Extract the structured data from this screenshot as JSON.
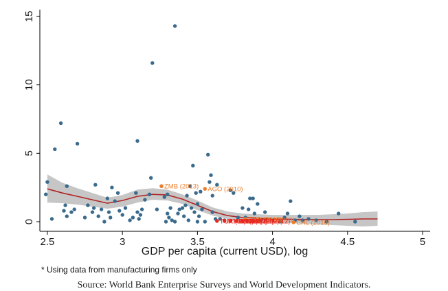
{
  "chart_data": {
    "type": "scatter",
    "xlabel": "GDP per capita (current USD), log",
    "ylabel": "",
    "xlim": [
      2.45,
      5.05
    ],
    "ylim": [
      -0.4,
      15.5
    ],
    "xticks": [
      2.5,
      3,
      3.5,
      4,
      4.5,
      5
    ],
    "xtick_labels": [
      "2.5",
      "3",
      "3.5",
      "4",
      "4.5",
      "5"
    ],
    "yticks": [
      0,
      5,
      10,
      15
    ],
    "ytick_labels": [
      "0",
      "5",
      "10",
      "15"
    ],
    "grid": false,
    "colors": {
      "points": "#3a6a8c",
      "fit_line": "#b22222",
      "confidence_band": "#b3b3b3",
      "highlight_orange": "#ee7d2b",
      "highlight_red": "#e8281e"
    },
    "series": [
      {
        "type": "scatter",
        "points": [
          [
            2.49,
            2.0
          ],
          [
            2.5,
            2.9
          ],
          [
            2.53,
            0.2
          ],
          [
            2.55,
            5.3
          ],
          [
            2.59,
            7.2
          ],
          [
            2.61,
            0.8
          ],
          [
            2.62,
            1.2
          ],
          [
            2.63,
            2.6
          ],
          [
            2.63,
            0.4
          ],
          [
            2.66,
            0.7
          ],
          [
            2.68,
            0.9
          ],
          [
            2.7,
            5.7
          ],
          [
            2.75,
            0.3
          ],
          [
            2.77,
            1.2
          ],
          [
            2.8,
            0.7
          ],
          [
            2.81,
            1.0
          ],
          [
            2.82,
            2.7
          ],
          [
            2.84,
            0.4
          ],
          [
            2.86,
            0.9
          ],
          [
            2.88,
            0.0
          ],
          [
            2.9,
            1.7
          ],
          [
            2.91,
            0.7
          ],
          [
            2.92,
            0.3
          ],
          [
            2.93,
            2.5
          ],
          [
            2.95,
            1.5
          ],
          [
            2.97,
            2.1
          ],
          [
            2.98,
            0.8
          ],
          [
            3.0,
            0.5
          ],
          [
            3.02,
            1.0
          ],
          [
            3.05,
            0.1
          ],
          [
            3.07,
            0.3
          ],
          [
            3.09,
            2.1
          ],
          [
            3.1,
            0.7
          ],
          [
            3.1,
            5.9
          ],
          [
            3.11,
            0.2
          ],
          [
            3.12,
            0.5
          ],
          [
            3.13,
            0.9
          ],
          [
            3.15,
            1.6
          ],
          [
            3.18,
            2.0
          ],
          [
            3.19,
            3.2
          ],
          [
            3.2,
            11.6
          ],
          [
            3.23,
            0.9
          ],
          [
            3.26,
            2.6
          ],
          [
            3.28,
            1.8
          ],
          [
            3.29,
            0.0
          ],
          [
            3.3,
            0.6
          ],
          [
            3.3,
            2.0
          ],
          [
            3.31,
            0.3
          ],
          [
            3.32,
            1.0
          ],
          [
            3.33,
            0.1
          ],
          [
            3.35,
            14.3
          ],
          [
            3.35,
            0.0
          ],
          [
            3.37,
            0.6
          ],
          [
            3.38,
            0.9
          ],
          [
            3.4,
            1.0
          ],
          [
            3.41,
            0.4
          ],
          [
            3.42,
            1.2
          ],
          [
            3.43,
            1.9
          ],
          [
            3.44,
            0.1
          ],
          [
            3.45,
            2.6
          ],
          [
            3.46,
            1.0
          ],
          [
            3.47,
            4.1
          ],
          [
            3.48,
            0.7
          ],
          [
            3.49,
            2.1
          ],
          [
            3.5,
            0.0
          ],
          [
            3.5,
            1.3
          ],
          [
            3.51,
            0.4
          ],
          [
            3.52,
            2.2
          ],
          [
            3.53,
            0.9
          ],
          [
            3.55,
            0.0
          ],
          [
            3.57,
            4.9
          ],
          [
            3.58,
            2.9
          ],
          [
            3.59,
            3.4
          ],
          [
            3.6,
            1.9
          ],
          [
            3.6,
            0.7
          ],
          [
            3.62,
            0.2
          ],
          [
            3.63,
            2.7
          ],
          [
            3.65,
            0.2
          ],
          [
            3.68,
            0.1
          ],
          [
            3.72,
            2.3
          ],
          [
            3.74,
            2.1
          ],
          [
            3.77,
            0.3
          ],
          [
            3.8,
            1.0
          ],
          [
            3.82,
            0.3
          ],
          [
            3.84,
            0.9
          ],
          [
            3.85,
            1.7
          ],
          [
            3.87,
            1.7
          ],
          [
            3.88,
            0.6
          ],
          [
            3.9,
            1.3
          ],
          [
            3.92,
            0.1
          ],
          [
            3.95,
            0.7
          ],
          [
            4.0,
            0.1
          ],
          [
            4.05,
            0.0
          ],
          [
            4.08,
            0.3
          ],
          [
            4.1,
            0.6
          ],
          [
            4.12,
            1.5
          ],
          [
            4.15,
            0.1
          ],
          [
            4.18,
            0.4
          ],
          [
            4.2,
            0.1
          ],
          [
            4.24,
            0.2
          ],
          [
            4.29,
            0.1
          ],
          [
            4.36,
            0.0
          ],
          [
            4.44,
            0.6
          ],
          [
            4.55,
            0.0
          ]
        ]
      },
      {
        "type": "line",
        "points": [
          [
            2.5,
            2.4
          ],
          [
            2.6,
            2.1
          ],
          [
            2.7,
            1.85
          ],
          [
            2.8,
            1.6
          ],
          [
            2.9,
            1.35
          ],
          [
            3.0,
            1.55
          ],
          [
            3.1,
            1.85
          ],
          [
            3.2,
            2.0
          ],
          [
            3.3,
            1.95
          ],
          [
            3.4,
            1.65
          ],
          [
            3.5,
            1.2
          ],
          [
            3.6,
            0.75
          ],
          [
            3.7,
            0.45
          ],
          [
            3.8,
            0.3
          ],
          [
            3.9,
            0.25
          ],
          [
            4.0,
            0.2
          ],
          [
            4.1,
            0.18
          ],
          [
            4.2,
            0.16
          ],
          [
            4.3,
            0.15
          ],
          [
            4.4,
            0.15
          ],
          [
            4.5,
            0.17
          ],
          [
            4.6,
            0.2
          ],
          [
            4.7,
            0.2
          ]
        ]
      },
      {
        "type": "band",
        "points": [
          [
            2.5,
            1.4,
            3.45
          ],
          [
            2.6,
            1.35,
            2.85
          ],
          [
            2.7,
            1.25,
            2.45
          ],
          [
            2.8,
            1.1,
            2.1
          ],
          [
            2.9,
            0.95,
            1.75
          ],
          [
            3.0,
            1.1,
            1.95
          ],
          [
            3.1,
            1.4,
            2.35
          ],
          [
            3.2,
            1.6,
            2.45
          ],
          [
            3.3,
            1.55,
            2.35
          ],
          [
            3.4,
            1.3,
            2.0
          ],
          [
            3.5,
            0.85,
            1.55
          ],
          [
            3.6,
            0.45,
            1.05
          ],
          [
            3.7,
            0.2,
            0.75
          ],
          [
            3.8,
            0.05,
            0.6
          ],
          [
            3.9,
            0.0,
            0.55
          ],
          [
            4.0,
            -0.05,
            0.5
          ],
          [
            4.1,
            -0.1,
            0.5
          ],
          [
            4.2,
            -0.15,
            0.5
          ],
          [
            4.3,
            -0.2,
            0.5
          ],
          [
            4.4,
            -0.25,
            0.55
          ],
          [
            4.5,
            -0.3,
            0.6
          ],
          [
            4.6,
            -0.35,
            0.7
          ],
          [
            4.7,
            -0.3,
            0.75
          ]
        ]
      }
    ],
    "annotations": [
      {
        "text": "ZMB (2013)",
        "x": 3.26,
        "y": 2.6,
        "color": "orange"
      },
      {
        "text": "AGO (2010)",
        "x": 3.55,
        "y": 2.4,
        "color": "orange"
      },
      {
        "text": "TTO (2010)",
        "x": 3.82,
        "y": 0.2,
        "color": "orange"
      },
      {
        "text": "URY (2010)",
        "x": 3.9,
        "y": 0.15,
        "color": "orange"
      },
      {
        "text": "CHL (2010)",
        "x": 4.14,
        "y": -0.05,
        "color": "orange"
      },
      {
        "text": "TUR (2013)",
        "x": 3.63,
        "y": 0.05,
        "color": "red"
      },
      {
        "text": "MYS (2015)",
        "x": 3.68,
        "y": 0.05,
        "color": "red"
      },
      {
        "text": "MEX (2010)",
        "x": 3.72,
        "y": 0.05,
        "color": "red"
      },
      {
        "text": "CHN (2012)",
        "x": 3.76,
        "y": 0.05,
        "color": "red"
      },
      {
        "text": "BRA (2009)",
        "x": 3.8,
        "y": 0.05,
        "color": "red"
      },
      {
        "text": "ZAF (2007)",
        "x": 3.83,
        "y": 0.05,
        "color": "red"
      },
      {
        "text": "RUS (2012)",
        "x": 3.87,
        "y": 0.05,
        "color": "red"
      }
    ]
  },
  "footnote": "* Using data from manufacturing firms only",
  "source": "Source: World Bank Enterprise Surveys and World Development Indicators."
}
